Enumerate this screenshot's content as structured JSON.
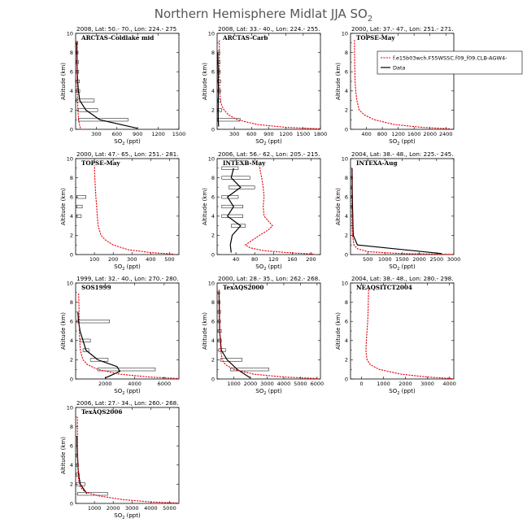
{
  "figure": {
    "title": "Northern Hemisphere Midlat JJA SO",
    "title_sub": "2",
    "ylabel": "Altitude (km)",
    "xlabel": "SO",
    "xlabel_sub": "2",
    "xlabel_unit": " (ppt)"
  },
  "colors": {
    "model": "#e8000b",
    "data": "#000000",
    "axis": "#000000"
  },
  "legend": {
    "model_label": "f.e15b03wch.F55WSSC.f09_f09.CLB-AGW4-",
    "data_label": "Data"
  },
  "chart_data": [
    {
      "type": "line",
      "header": "2008, Lat: 50.- 70., Lon: 224.- 275",
      "campaign": "ARCTAS-Coldlake mid",
      "xlim": [
        0,
        1500
      ],
      "xticks": [
        300,
        600,
        900,
        1200,
        1500
      ],
      "ylim": [
        0,
        10
      ],
      "yticks": [
        0,
        2,
        4,
        6,
        8,
        10
      ],
      "model": {
        "x": [
          70,
          55,
          45,
          38,
          32,
          28,
          25,
          23,
          22,
          22,
          22,
          23,
          23
        ],
        "y": [
          0.1,
          0.5,
          1,
          1.5,
          2,
          3,
          4,
          5,
          6,
          7,
          8,
          8.7,
          9.3
        ]
      },
      "data": {
        "x": [
          900,
          350,
          150,
          60,
          40,
          30,
          25,
          20,
          18,
          15
        ],
        "y": [
          0.1,
          1,
          2,
          3,
          4,
          5,
          6,
          7,
          8,
          9
        ]
      },
      "boxes": [
        {
          "y": 1,
          "x0": 40,
          "x1": 760
        },
        {
          "y": 2,
          "x0": 40,
          "x1": 320
        },
        {
          "y": 3,
          "x0": 10,
          "x1": 270
        },
        {
          "y": 4,
          "x0": 5,
          "x1": 60
        },
        {
          "y": 5,
          "x0": 5,
          "x1": 55
        },
        {
          "y": 6,
          "x0": 5,
          "x1": 45
        },
        {
          "y": 7,
          "x0": 5,
          "x1": 40
        },
        {
          "y": 8,
          "x0": 5,
          "x1": 35
        },
        {
          "y": 9,
          "x0": 5,
          "x1": 30
        }
      ]
    },
    {
      "type": "line",
      "header": "2008, Lat: 33.- 40., Lon: 224.- 255.",
      "campaign": "ARCTAS-Carb",
      "xlim": [
        0,
        1800
      ],
      "xticks": [
        300,
        600,
        900,
        1200,
        1500,
        1800
      ],
      "ylim": [
        0,
        10
      ],
      "yticks": [
        0,
        2,
        4,
        6,
        8,
        10
      ],
      "model": {
        "x": [
          1790,
          1200,
          700,
          350,
          200,
          120,
          80,
          55,
          45,
          40,
          38,
          38,
          38,
          38,
          38
        ],
        "y": [
          0.05,
          0.2,
          0.5,
          1,
          1.5,
          2,
          2.5,
          3,
          4,
          5,
          6,
          7,
          8,
          8.7,
          9.3
        ]
      },
      "data": {
        "x": [
          25,
          20,
          18,
          20,
          22,
          20,
          18,
          15,
          12
        ],
        "y": [
          0.3,
          1,
          2,
          3,
          4,
          5,
          6,
          7,
          8
        ]
      },
      "boxes": [
        {
          "y": 1,
          "x0": 5,
          "x1": 400
        },
        {
          "y": 2,
          "x0": 5,
          "x1": 80
        },
        {
          "y": 3,
          "x0": 5,
          "x1": 60
        },
        {
          "y": 4,
          "x0": 5,
          "x1": 60
        },
        {
          "y": 5,
          "x0": 5,
          "x1": 60
        },
        {
          "y": 6,
          "x0": 5,
          "x1": 55
        },
        {
          "y": 7,
          "x0": 5,
          "x1": 50
        },
        {
          "y": 8,
          "x0": 5,
          "x1": 45
        }
      ]
    },
    {
      "type": "line",
      "header": "2000, Lat: 37.- 47., Lon: 251.- 271.",
      "campaign": "TOPSE-May",
      "xlim": [
        0,
        2600
      ],
      "xticks": [
        400,
        800,
        1200,
        1600,
        2000,
        2400
      ],
      "ylim": [
        0,
        10
      ],
      "yticks": [
        0,
        2,
        4,
        6,
        8,
        10
      ],
      "model": {
        "x": [
          2500,
          1800,
          1100,
          600,
          350,
          220,
          160,
          130,
          115,
          110,
          105,
          100,
          100
        ],
        "y": [
          0.05,
          0.2,
          0.5,
          1,
          1.5,
          2,
          3,
          4,
          5,
          6,
          7,
          8,
          9.3
        ]
      },
      "data": null,
      "boxes": [],
      "legend": true
    },
    {
      "type": "line",
      "header": "2000, Lat: 47.- 65., Lon: 251.- 281.",
      "campaign": "TOPSE-May",
      "xlim": [
        0,
        550
      ],
      "xticks": [
        100,
        200,
        300,
        400,
        500
      ],
      "ylim": [
        0,
        10
      ],
      "yticks": [
        0,
        2,
        4,
        6,
        8,
        10
      ],
      "model": {
        "x": [
          520,
          400,
          280,
          200,
          160,
          135,
          120,
          115,
          112,
          108,
          105,
          102,
          100
        ],
        "y": [
          0.05,
          0.2,
          0.5,
          1,
          1.5,
          2,
          3,
          4,
          5,
          6,
          7,
          8,
          9.3
        ]
      },
      "data": null,
      "boxes": [
        {
          "y": 4,
          "x0": 5,
          "x1": 30
        },
        {
          "y": 5,
          "x0": 5,
          "x1": 35
        },
        {
          "y": 6,
          "x0": 5,
          "x1": 55
        }
      ]
    },
    {
      "type": "line",
      "header": "2006, Lat: 56.- 62., Lon: 205.- 215.",
      "campaign": "INTEXB-May",
      "xlim": [
        0,
        220
      ],
      "xticks": [
        40,
        80,
        120,
        160,
        200
      ],
      "ylim": [
        0,
        10
      ],
      "yticks": [
        0,
        2,
        4,
        6,
        8,
        10
      ],
      "model": {
        "x": [
          205,
          150,
          100,
          70,
          60,
          75,
          90,
          110,
          118,
          100,
          98,
          100,
          98,
          95,
          92,
          90
        ],
        "y": [
          0.05,
          0.2,
          0.4,
          0.7,
          1,
          1.5,
          2,
          2.6,
          3,
          4,
          5,
          6,
          7,
          8,
          8.7,
          9.3
        ]
      },
      "data": {
        "x": [
          30,
          28,
          32,
          50,
          22,
          35,
          22,
          50,
          30,
          35
        ],
        "y": [
          0.2,
          1,
          2,
          3,
          4,
          5,
          6,
          7,
          8,
          9
        ]
      },
      "boxes": [
        {
          "y": 3,
          "x0": 30,
          "x1": 60
        },
        {
          "y": 4,
          "x0": 10,
          "x1": 55
        },
        {
          "y": 5,
          "x0": 10,
          "x1": 55
        },
        {
          "y": 6,
          "x0": 10,
          "x1": 45
        },
        {
          "y": 7,
          "x0": 25,
          "x1": 80
        },
        {
          "y": 8,
          "x0": 10,
          "x1": 70
        },
        {
          "y": 9,
          "x0": 10,
          "x1": 45
        }
      ]
    },
    {
      "type": "line",
      "header": "2004, Lat: 38.- 48., Lon: 225.- 245.",
      "campaign": "INTEXA-Aug",
      "xlim": [
        0,
        3000
      ],
      "xticks": [
        500,
        1000,
        1500,
        2000,
        2500,
        3000
      ],
      "ylim": [
        0,
        10
      ],
      "yticks": [
        0,
        2,
        4,
        6,
        8,
        10
      ],
      "model": {
        "x": [
          2950,
          1500,
          500,
          200,
          100,
          60,
          45,
          42,
          40,
          40,
          40,
          40
        ],
        "y": [
          0.02,
          0.1,
          0.3,
          0.6,
          1,
          2,
          3,
          4,
          5,
          6,
          7,
          8.7
        ]
      },
      "data": {
        "x": [
          2650,
          200,
          80,
          70,
          65,
          60,
          55,
          50,
          50,
          45
        ],
        "y": [
          0.1,
          1,
          2,
          3,
          4,
          5,
          6,
          7,
          8,
          9
        ]
      },
      "boxes": [
        {
          "y": 5,
          "x0": 5,
          "x1": 30
        },
        {
          "y": 6,
          "x0": 5,
          "x1": 30
        },
        {
          "y": 7,
          "x0": 5,
          "x1": 30
        },
        {
          "y": 8,
          "x0": 5,
          "x1": 30
        }
      ]
    },
    {
      "type": "line",
      "header": "1999, Lat: 32.- 40., Lon: 270.- 280.",
      "campaign": "SOS1999",
      "xlim": [
        0,
        7000
      ],
      "xticks": [
        2000,
        4000,
        6000
      ],
      "ylim": [
        0,
        10
      ],
      "yticks": [
        0,
        2,
        4,
        6,
        8,
        10
      ],
      "model": {
        "x": [
          6900,
          5000,
          3000,
          1500,
          800,
          500,
          400,
          320,
          280,
          250,
          240,
          230,
          220,
          200
        ],
        "y": [
          0.05,
          0.2,
          0.5,
          1,
          1.5,
          2,
          2.5,
          3,
          4,
          5,
          6,
          7,
          8,
          9
        ]
      },
      "data": {
        "x": [
          2000,
          3000,
          2800,
          1500,
          700,
          500,
          300,
          200,
          150
        ],
        "y": [
          0.1,
          0.8,
          1.3,
          2,
          3,
          4,
          5,
          6,
          7
        ]
      },
      "boxes": [
        {
          "y": 1,
          "x0": 1500,
          "x1": 5400
        },
        {
          "y": 2,
          "x0": 1000,
          "x1": 2200
        },
        {
          "y": 3,
          "x0": 500,
          "x1": 900
        },
        {
          "y": 4,
          "x0": 300,
          "x1": 1000
        },
        {
          "y": 6,
          "x0": 100,
          "x1": 2300
        }
      ]
    },
    {
      "type": "line",
      "header": "2000, Lat: 28.- 35., Lon: 262.- 268.",
      "campaign": "TexAQS2000",
      "xlim": [
        0,
        6200
      ],
      "xticks": [
        1000,
        2000,
        3000,
        4000,
        5000,
        6000
      ],
      "ylim": [
        0,
        10
      ],
      "yticks": [
        0,
        2,
        4,
        6,
        8,
        10
      ],
      "model": {
        "x": [
          6000,
          4000,
          2200,
          1000,
          500,
          300,
          220,
          180,
          160,
          150,
          140,
          130,
          120
        ],
        "y": [
          0.05,
          0.2,
          0.5,
          1,
          1.5,
          2,
          3,
          4,
          5,
          6,
          7,
          8,
          9.3
        ]
      },
      "data": {
        "x": [
          2000,
          1200,
          600,
          250,
          200,
          150,
          140,
          130,
          120,
          110
        ],
        "y": [
          0.1,
          1,
          2,
          3,
          4,
          5,
          6,
          7,
          8,
          9
        ]
      },
      "boxes": [
        {
          "y": 1,
          "x0": 800,
          "x1": 3100
        },
        {
          "y": 2,
          "x0": 200,
          "x1": 1500
        },
        {
          "y": 3,
          "x0": 100,
          "x1": 500
        },
        {
          "y": 4,
          "x0": 50,
          "x1": 250
        },
        {
          "y": 5,
          "x0": 50,
          "x1": 250
        },
        {
          "y": 6,
          "x0": 50,
          "x1": 200
        },
        {
          "y": 7,
          "x0": 50,
          "x1": 200
        },
        {
          "y": 8,
          "x0": 50,
          "x1": 180
        },
        {
          "y": 9,
          "x0": 50,
          "x1": 150
        }
      ]
    },
    {
      "type": "line",
      "header": "2004, Lat: 38.- 48., Lon: 280.- 298.",
      "campaign": "NEAQSITCT2004",
      "xlim": [
        -500,
        4200
      ],
      "xticks": [
        0,
        1000,
        2000,
        3000,
        4000
      ],
      "ylim": [
        0,
        10
      ],
      "yticks": [
        0,
        2,
        4,
        6,
        8,
        10
      ],
      "model": {
        "x": [
          4100,
          3000,
          1800,
          800,
          400,
          250,
          200,
          220,
          250,
          280,
          300,
          320
        ],
        "y": [
          0.05,
          0.2,
          0.5,
          1,
          1.5,
          2,
          3,
          4,
          5,
          6,
          7,
          9.3
        ]
      },
      "data": null,
      "boxes": []
    },
    {
      "type": "line",
      "header": "2006, Lat: 27.- 34., Lon: 260.- 268.",
      "campaign": "TexAQS2006",
      "xlim": [
        0,
        5500
      ],
      "xticks": [
        1000,
        2000,
        3000,
        4000,
        5000
      ],
      "ylim": [
        0,
        10
      ],
      "yticks": [
        0,
        2,
        4,
        6,
        8,
        10
      ],
      "model": {
        "x": [
          5400,
          4000,
          2500,
          1200,
          500,
          250,
          150,
          120,
          110,
          100,
          100,
          95,
          95
        ],
        "y": [
          0.05,
          0.15,
          0.4,
          0.8,
          1.2,
          1.7,
          2.5,
          4,
          5,
          6,
          7,
          8,
          9
        ]
      },
      "data": {
        "x": [
          600,
          250,
          150,
          120,
          100,
          80,
          70
        ],
        "y": [
          1,
          2,
          3,
          4,
          5,
          6,
          7
        ]
      },
      "boxes": [
        {
          "y": 1,
          "x0": 100,
          "x1": 1700
        },
        {
          "y": 2,
          "x0": 20,
          "x1": 500
        },
        {
          "y": 3,
          "x0": 20,
          "x1": 200
        },
        {
          "y": 4,
          "x0": 20,
          "x1": 150
        },
        {
          "y": 5,
          "x0": 20,
          "x1": 120
        }
      ]
    }
  ]
}
